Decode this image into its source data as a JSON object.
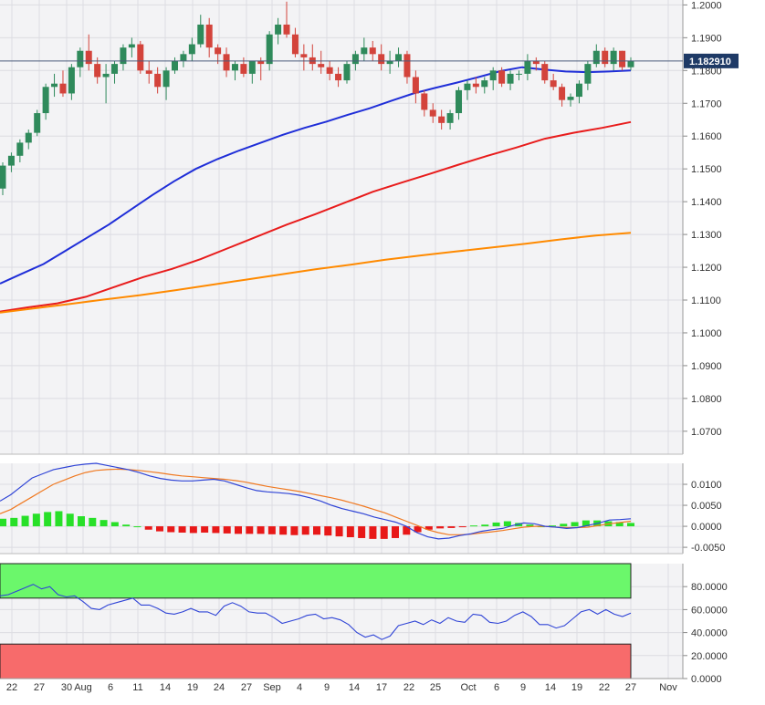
{
  "chart_data": [
    {
      "type": "candlestick",
      "panel": "price",
      "y_ticks": [
        "1.2000",
        "1.1900",
        "1.1800",
        "1.1700",
        "1.1600",
        "1.1500",
        "1.1400",
        "1.1300",
        "1.1200",
        "1.1100",
        "1.1000",
        "1.0900",
        "1.0800",
        "1.0700"
      ],
      "ylim": [
        1.063,
        1.2015
      ],
      "current_price": 1.18291,
      "current_price_label": "1.182910",
      "x_labels": [
        "22",
        "27",
        "30",
        "Aug",
        "6",
        "11",
        "14",
        "19",
        "24",
        "27",
        "Sep",
        "4",
        "9",
        "14",
        "17",
        "22",
        "25",
        "Oct",
        "6",
        "9",
        "14",
        "19",
        "22",
        "27",
        "Nov"
      ],
      "candles": [
        [
          1.144,
          1.152,
          1.142,
          1.151
        ],
        [
          1.151,
          1.155,
          1.149,
          1.154
        ],
        [
          1.154,
          1.159,
          1.152,
          1.158
        ],
        [
          1.158,
          1.162,
          1.156,
          1.161
        ],
        [
          1.161,
          1.168,
          1.16,
          1.167
        ],
        [
          1.167,
          1.176,
          1.165,
          1.175
        ],
        [
          1.175,
          1.179,
          1.172,
          1.176
        ],
        [
          1.176,
          1.18,
          1.172,
          1.173
        ],
        [
          1.173,
          1.182,
          1.171,
          1.181
        ],
        [
          1.181,
          1.187,
          1.178,
          1.186
        ],
        [
          1.186,
          1.191,
          1.18,
          1.182
        ],
        [
          1.182,
          1.184,
          1.176,
          1.178
        ],
        [
          1.178,
          1.182,
          1.17,
          1.179
        ],
        [
          1.179,
          1.183,
          1.176,
          1.182
        ],
        [
          1.182,
          1.188,
          1.18,
          1.187
        ],
        [
          1.187,
          1.19,
          1.184,
          1.188
        ],
        [
          1.188,
          1.189,
          1.179,
          1.18
        ],
        [
          1.18,
          1.183,
          1.176,
          1.179
        ],
        [
          1.179,
          1.181,
          1.173,
          1.175
        ],
        [
          1.175,
          1.181,
          1.171,
          1.18
        ],
        [
          1.18,
          1.184,
          1.179,
          1.183
        ],
        [
          1.183,
          1.186,
          1.181,
          1.185
        ],
        [
          1.185,
          1.19,
          1.183,
          1.188
        ],
        [
          1.188,
          1.197,
          1.187,
          1.194
        ],
        [
          1.194,
          1.196,
          1.184,
          1.187
        ],
        [
          1.187,
          1.188,
          1.182,
          1.185
        ],
        [
          1.185,
          1.187,
          1.178,
          1.18
        ],
        [
          1.18,
          1.183,
          1.177,
          1.182
        ],
        [
          1.182,
          1.184,
          1.178,
          1.179
        ],
        [
          1.179,
          1.183,
          1.176,
          1.183
        ],
        [
          1.183,
          1.184,
          1.177,
          1.182
        ],
        [
          1.182,
          1.192,
          1.18,
          1.191
        ],
        [
          1.191,
          1.196,
          1.188,
          1.194
        ],
        [
          1.194,
          1.201,
          1.19,
          1.191
        ],
        [
          1.191,
          1.193,
          1.184,
          1.185
        ],
        [
          1.185,
          1.188,
          1.18,
          1.184
        ],
        [
          1.184,
          1.188,
          1.18,
          1.182
        ],
        [
          1.182,
          1.186,
          1.179,
          1.181
        ],
        [
          1.181,
          1.183,
          1.177,
          1.179
        ],
        [
          1.179,
          1.181,
          1.175,
          1.177
        ],
        [
          1.177,
          1.183,
          1.176,
          1.182
        ],
        [
          1.182,
          1.186,
          1.18,
          1.185
        ],
        [
          1.185,
          1.19,
          1.183,
          1.187
        ],
        [
          1.187,
          1.189,
          1.183,
          1.185
        ],
        [
          1.185,
          1.188,
          1.18,
          1.182
        ],
        [
          1.182,
          1.186,
          1.179,
          1.183
        ],
        [
          1.183,
          1.187,
          1.181,
          1.185
        ],
        [
          1.185,
          1.186,
          1.176,
          1.178
        ],
        [
          1.178,
          1.18,
          1.17,
          1.173
        ],
        [
          1.173,
          1.174,
          1.166,
          1.168
        ],
        [
          1.168,
          1.17,
          1.164,
          1.166
        ],
        [
          1.166,
          1.168,
          1.162,
          1.164
        ],
        [
          1.164,
          1.168,
          1.162,
          1.167
        ],
        [
          1.167,
          1.175,
          1.165,
          1.174
        ],
        [
          1.174,
          1.177,
          1.171,
          1.176
        ],
        [
          1.176,
          1.178,
          1.173,
          1.175
        ],
        [
          1.175,
          1.178,
          1.173,
          1.177
        ],
        [
          1.177,
          1.181,
          1.174,
          1.18
        ],
        [
          1.18,
          1.181,
          1.175,
          1.176
        ],
        [
          1.176,
          1.18,
          1.174,
          1.179
        ],
        [
          1.179,
          1.18,
          1.177,
          1.179
        ],
        [
          1.179,
          1.185,
          1.177,
          1.183
        ],
        [
          1.183,
          1.184,
          1.18,
          1.182
        ],
        [
          1.182,
          1.183,
          1.176,
          1.177
        ],
        [
          1.177,
          1.179,
          1.174,
          1.175
        ],
        [
          1.175,
          1.176,
          1.169,
          1.171
        ],
        [
          1.171,
          1.173,
          1.169,
          1.172
        ],
        [
          1.172,
          1.177,
          1.17,
          1.176
        ],
        [
          1.176,
          1.183,
          1.174,
          1.182
        ],
        [
          1.182,
          1.188,
          1.181,
          1.186
        ],
        [
          1.186,
          1.187,
          1.181,
          1.182
        ],
        [
          1.182,
          1.187,
          1.18,
          1.186
        ],
        [
          1.186,
          1.186,
          1.18,
          1.181
        ],
        [
          1.181,
          1.184,
          1.18,
          1.1829
        ]
      ],
      "moving_averages": [
        {
          "color": "#1f2ed8",
          "values": [
            1.115,
            1.118,
            1.121,
            1.125,
            1.129,
            1.133,
            1.1375,
            1.142,
            1.1462,
            1.15,
            1.153,
            1.1556,
            1.158,
            1.1604,
            1.1625,
            1.1644,
            1.1665,
            1.1685,
            1.1708,
            1.173,
            1.1747,
            1.1763,
            1.178,
            1.1798,
            1.181,
            1.1803,
            1.1797,
            1.1795,
            1.1797,
            1.18
          ]
        },
        {
          "color": "#e81c1c",
          "values": [
            1.1065,
            1.1078,
            1.109,
            1.111,
            1.114,
            1.117,
            1.1195,
            1.1225,
            1.126,
            1.1295,
            1.133,
            1.1362,
            1.1396,
            1.143,
            1.1458,
            1.1485,
            1.1513,
            1.154,
            1.1565,
            1.1592,
            1.161,
            1.1625,
            1.1643
          ]
        },
        {
          "color": "#ff8a00",
          "values": [
            1.1062,
            1.1075,
            1.1088,
            1.1102,
            1.1115,
            1.113,
            1.1146,
            1.1162,
            1.1178,
            1.1194,
            1.1208,
            1.1223,
            1.1236,
            1.1248,
            1.126,
            1.1272,
            1.1285,
            1.1297,
            1.1305
          ]
        }
      ]
    },
    {
      "type": "macd",
      "panel": "macd",
      "y_ticks": [
        "0.0100",
        "0.0050",
        "0.0000",
        "-0.0050"
      ],
      "ylim": [
        -0.0065,
        0.015
      ],
      "macd": [
        0.006,
        0.0075,
        0.0095,
        0.0115,
        0.0125,
        0.0135,
        0.014,
        0.0145,
        0.0148,
        0.015,
        0.0145,
        0.014,
        0.0135,
        0.0128,
        0.012,
        0.0114,
        0.011,
        0.0108,
        0.0108,
        0.011,
        0.0112,
        0.0108,
        0.01,
        0.0092,
        0.0085,
        0.0082,
        0.008,
        0.0078,
        0.0074,
        0.0068,
        0.006,
        0.005,
        0.0042,
        0.0036,
        0.003,
        0.0022,
        0.0016,
        0.001,
        0.0,
        -0.0015,
        -0.0025,
        -0.003,
        -0.0028,
        -0.0022,
        -0.0018,
        -0.0012,
        -0.0008,
        -0.0005,
        0.0002,
        0.0008,
        0.0006,
        0.0,
        -0.0002,
        -0.0005,
        -0.0003,
        0.0002,
        0.0008,
        0.0015,
        0.0016,
        0.0018
      ],
      "signal": [
        0.003,
        0.004,
        0.0055,
        0.007,
        0.0085,
        0.01,
        0.011,
        0.012,
        0.0128,
        0.0133,
        0.0135,
        0.0136,
        0.0135,
        0.0133,
        0.013,
        0.0127,
        0.0123,
        0.012,
        0.0118,
        0.0116,
        0.0114,
        0.0112,
        0.0109,
        0.0105,
        0.01,
        0.0095,
        0.0091,
        0.0087,
        0.0083,
        0.0078,
        0.0073,
        0.0068,
        0.0062,
        0.0055,
        0.0048,
        0.004,
        0.0032,
        0.0022,
        0.0012,
        0.0002,
        -0.0008,
        -0.0015,
        -0.002,
        -0.002,
        -0.0019,
        -0.0016,
        -0.0013,
        -0.001,
        -0.0006,
        -0.0002,
        0.0,
        0.0,
        -0.0002,
        -0.0003,
        -0.0003,
        -0.0002,
        0.0002,
        0.0006,
        0.0009,
        0.0012
      ],
      "histogram": [
        0.0018,
        0.002,
        0.0025,
        0.003,
        0.0034,
        0.0036,
        0.003,
        0.0024,
        0.002,
        0.0015,
        0.001,
        0.0004,
        0.0,
        -0.0008,
        -0.0012,
        -0.0014,
        -0.0015,
        -0.0016,
        -0.0015,
        -0.0016,
        -0.0017,
        -0.0018,
        -0.0018,
        -0.0018,
        -0.0019,
        -0.002,
        -0.0021,
        -0.002,
        -0.002,
        -0.0022,
        -0.0024,
        -0.0026,
        -0.0028,
        -0.003,
        -0.003,
        -0.0028,
        -0.002,
        -0.0014,
        -0.0008,
        -0.0005,
        -0.0004,
        -0.0002,
        0.0002,
        0.0004,
        0.0009,
        0.0012,
        0.0008,
        0.0004,
        0.0,
        0.0002,
        0.0006,
        0.001,
        0.0014,
        0.0014,
        0.0012,
        0.001,
        0.0008
      ]
    },
    {
      "type": "rsi",
      "panel": "rsi",
      "y_ticks": [
        "80.0000",
        "60.0000",
        "40.0000",
        "20.0000",
        "0.0000"
      ],
      "ylim": [
        0,
        100
      ],
      "overbought_zone": [
        70,
        100
      ],
      "oversold_zone": [
        0,
        30
      ],
      "colors": {
        "overbought": "#6bf76b",
        "oversold": "#f76b6b",
        "line": "#2f44d6"
      },
      "values": [
        72,
        73,
        76,
        79,
        82,
        78,
        80,
        73,
        71,
        72,
        67,
        61,
        60,
        64,
        66,
        68,
        70,
        64,
        64,
        61,
        57,
        56,
        58,
        61,
        58,
        58,
        55,
        63,
        66,
        63,
        58,
        57,
        57,
        53,
        48,
        50,
        52,
        55,
        56,
        52,
        53,
        51,
        47,
        40,
        36,
        38,
        34,
        37,
        46,
        48,
        50,
        47,
        51,
        48,
        53,
        50,
        49,
        56,
        55,
        49,
        48,
        50,
        55,
        58,
        54,
        47,
        47,
        44,
        46,
        52,
        58,
        60,
        56,
        60,
        56,
        54,
        57
      ]
    }
  ]
}
